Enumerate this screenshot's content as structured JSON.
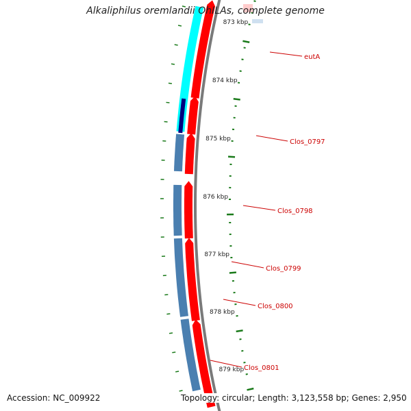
{
  "title": "Alkaliphilus oremlandii OhILAs, complete genome",
  "footer": {
    "accession": "Accession: NC_009922",
    "summary": "Topology: circular; Length: 3,123,558 bp; Genes: 2,950"
  },
  "colors": {
    "backbone": "#7a7a7a",
    "tick": "#1a7a1a",
    "tick_label": "#222222",
    "forward_cds": "#ff0000",
    "reverse_gene": "#4a7fb0",
    "reverse_gene_alt": "#00ffff",
    "reverse_gene_dark": "#000080",
    "gene_label": "#cc0000"
  },
  "scale": {
    "unit": "kbp",
    "labels": [
      "873 kbp",
      "874 kbp",
      "875 kbp",
      "876 kbp",
      "877 kbp",
      "878 kbp",
      "879 kbp"
    ]
  },
  "genes": [
    {
      "name": "eutA"
    },
    {
      "name": "Clos_0797"
    },
    {
      "name": "Clos_0798"
    },
    {
      "name": "Clos_0799"
    },
    {
      "name": "Clos_0800"
    },
    {
      "name": "Clos_0801"
    }
  ]
}
